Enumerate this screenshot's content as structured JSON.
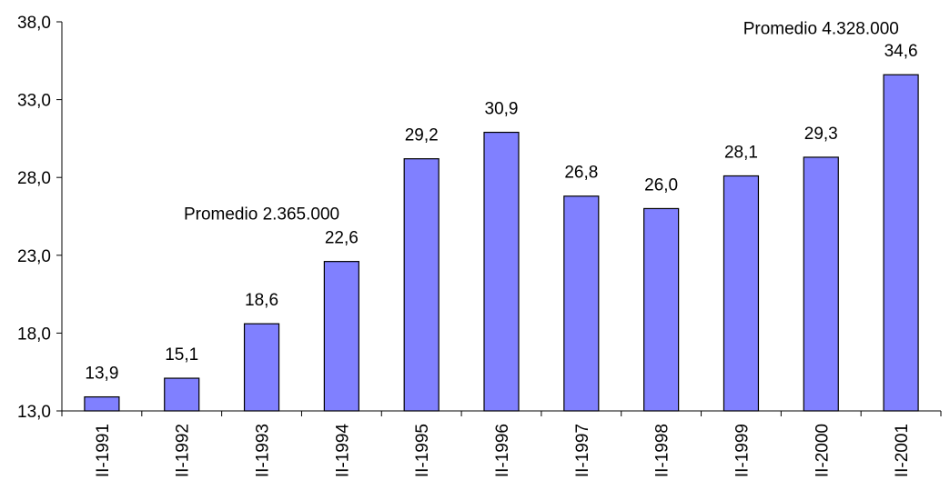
{
  "chart_data": {
    "type": "bar",
    "categories": [
      "II-1991",
      "II-1992",
      "II-1993",
      "II-1994",
      "II-1995",
      "II-1996",
      "II-1997",
      "II-1998",
      "II-1999",
      "II-2000",
      "II-2001"
    ],
    "values": [
      13.9,
      15.1,
      18.6,
      22.6,
      29.2,
      30.9,
      26.8,
      26.0,
      28.1,
      29.3,
      34.6
    ],
    "value_labels": [
      "13,9",
      "15,1",
      "18,6",
      "22,6",
      "29,2",
      "30,9",
      "26,8",
      "26,0",
      "28,1",
      "29,3",
      "34,6"
    ],
    "y_ticks": [
      13.0,
      18.0,
      23.0,
      28.0,
      33.0,
      38.0
    ],
    "y_tick_labels": [
      "13,0",
      "18,0",
      "23,0",
      "28,0",
      "33,0",
      "38,0"
    ],
    "ylim": [
      13.0,
      38.0
    ],
    "bar_color": "#8080ff",
    "grid": false,
    "annotations": [
      {
        "text": "Promedio 2.365.000",
        "x": "II-1993",
        "y": 25.3
      },
      {
        "text": "Promedio 4.328.000",
        "x": "II-2000",
        "y": 37.2
      }
    ]
  }
}
